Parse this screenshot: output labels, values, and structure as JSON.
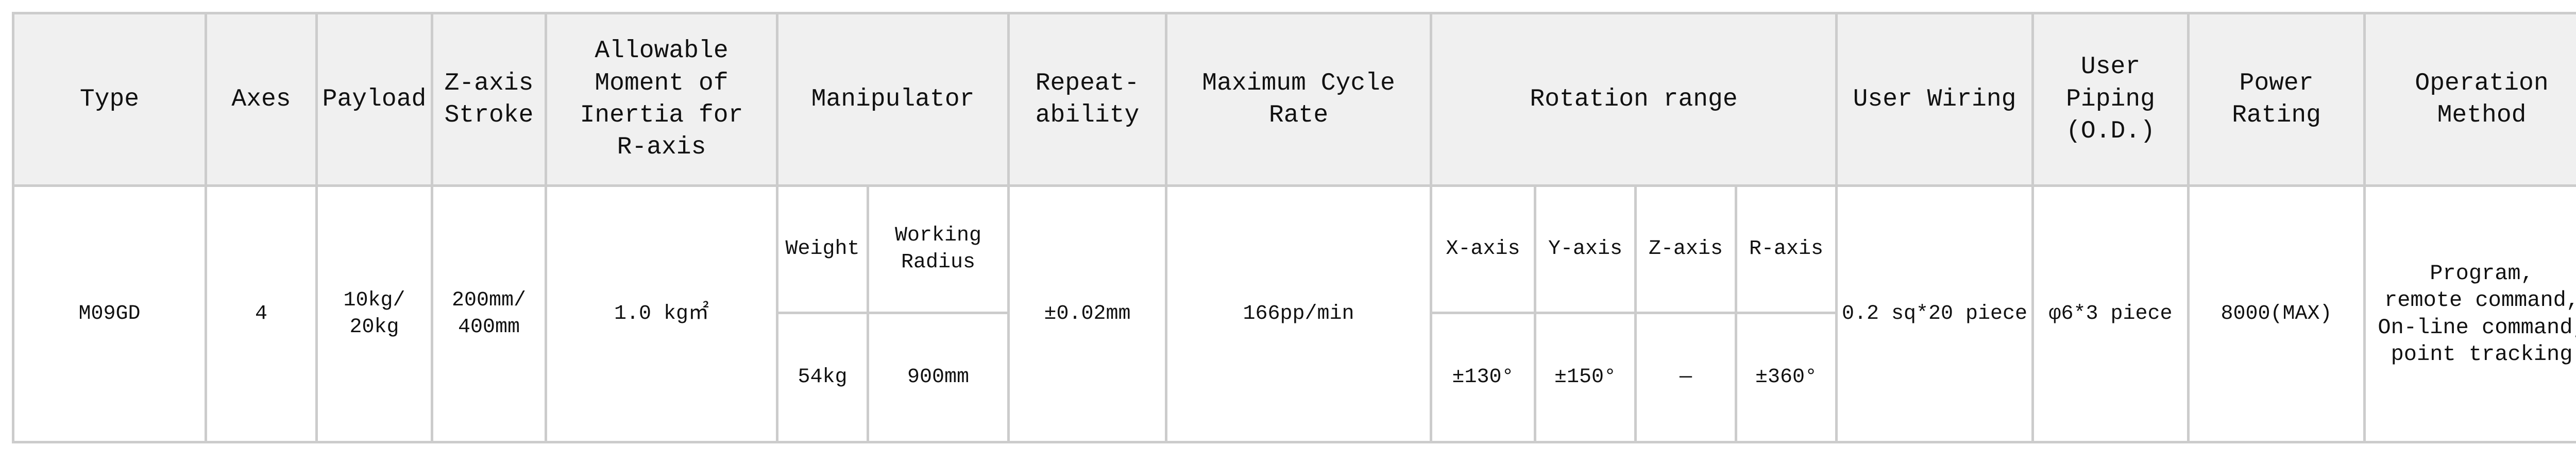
{
  "headers": {
    "type": "Type",
    "axes": "Axes",
    "payload": "Payload",
    "z_stroke": "Z-axis\nStroke",
    "inertia": "Allowable\nMoment of\nInertia for\nR-axis",
    "manipulator": "Manipulator",
    "repeatability": "Repeat-\nability",
    "cycle_rate": "Maximum Cycle Rate",
    "rotation_range": "Rotation range",
    "user_wiring": "User Wiring",
    "user_piping": "User Piping\n(O.D.)",
    "power_rating": "Power Rating",
    "operation_method": "Operation\nMethod"
  },
  "subheaders": {
    "weight": "Weight",
    "working_radius": "Working\nRadius",
    "x_axis": "X-axis",
    "y_axis": "Y-axis",
    "z_axis": "Z-axis",
    "r_axis": "R-axis"
  },
  "row": {
    "type": "M09GD",
    "axes": "4",
    "payload": "10kg/\n20kg",
    "z_stroke": "200mm/\n400mm",
    "inertia": "1.0 kg㎡",
    "weight": "54kg",
    "working_radius": "900mm",
    "repeatability": "±0.02mm",
    "cycle_rate": "166pp/min",
    "rot_x": "±130°",
    "rot_y": "±150°",
    "rot_z": "—",
    "rot_r": "±360°",
    "user_wiring": "0.2 sq*20 piece",
    "user_piping": "φ6*3 piece",
    "power_rating": "8000(MAX)",
    "operation_method": "Program,\nremote command,\nOn-line command,\n point tracking"
  },
  "colors": {
    "border": "#cccccc",
    "header_bg": "#f0f0f0"
  }
}
